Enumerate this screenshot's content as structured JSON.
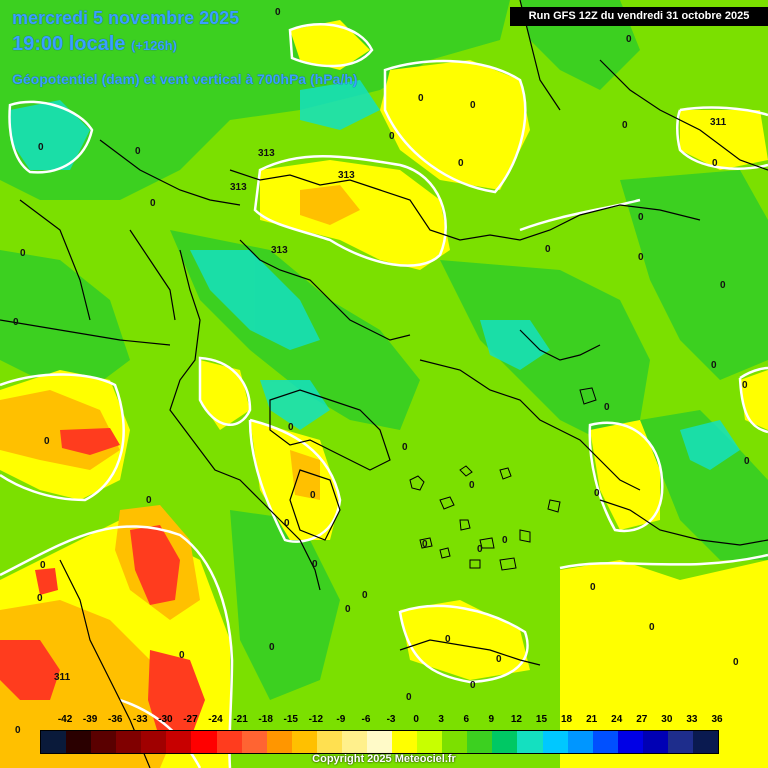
{
  "header": {
    "date": "mercredi 5 novembre 2025",
    "time": "19:00 locale",
    "step": "(+126h)",
    "parameter": "Géopotentiel (dam) et vent vertical à 700hPa (hPa/h)",
    "run": "Run GFS 12Z du vendredi 31 octobre 2025"
  },
  "legend": {
    "ticks": [
      "-42",
      "-39",
      "-36",
      "-33",
      "-30",
      "-27",
      "-24",
      "-21",
      "-18",
      "-15",
      "-12",
      "-9",
      "-6",
      "-3",
      "0",
      "3",
      "6",
      "9",
      "12",
      "15",
      "18",
      "21",
      "24",
      "27",
      "30",
      "33",
      "36"
    ],
    "colors": [
      "#0a1a3a",
      "#2a0000",
      "#5a0000",
      "#800000",
      "#a00000",
      "#c80000",
      "#ff0000",
      "#ff3c1e",
      "#ff6432",
      "#ff9600",
      "#ffc000",
      "#ffe050",
      "#fff08c",
      "#fffac8",
      "#ffff00",
      "#c8ff00",
      "#7ce000",
      "#3cd020",
      "#00c864",
      "#14e0c0",
      "#00c8ff",
      "#0096ff",
      "#0050ff",
      "#0000e6",
      "#0000b4",
      "#1e2d8c",
      "#0a1a50"
    ]
  },
  "contours": {
    "geopotential": [
      "313",
      "313",
      "313",
      "313",
      "311",
      "311"
    ],
    "zero_labels": [
      "0",
      "0",
      "0",
      "0",
      "0",
      "0",
      "0",
      "0",
      "0",
      "0",
      "0",
      "0",
      "0",
      "0",
      "0",
      "0",
      "0",
      "0",
      "0",
      "0",
      "0",
      "0",
      "0",
      "0",
      "0",
      "0",
      "0",
      "0",
      "0",
      "0",
      "0",
      "0",
      "0",
      "0",
      "0",
      "0",
      "0",
      "0",
      "0",
      "0",
      "0",
      "0",
      "0",
      "0",
      "0",
      "0",
      "0"
    ]
  },
  "copyright": "Copyright 2025 Meteociel.fr"
}
